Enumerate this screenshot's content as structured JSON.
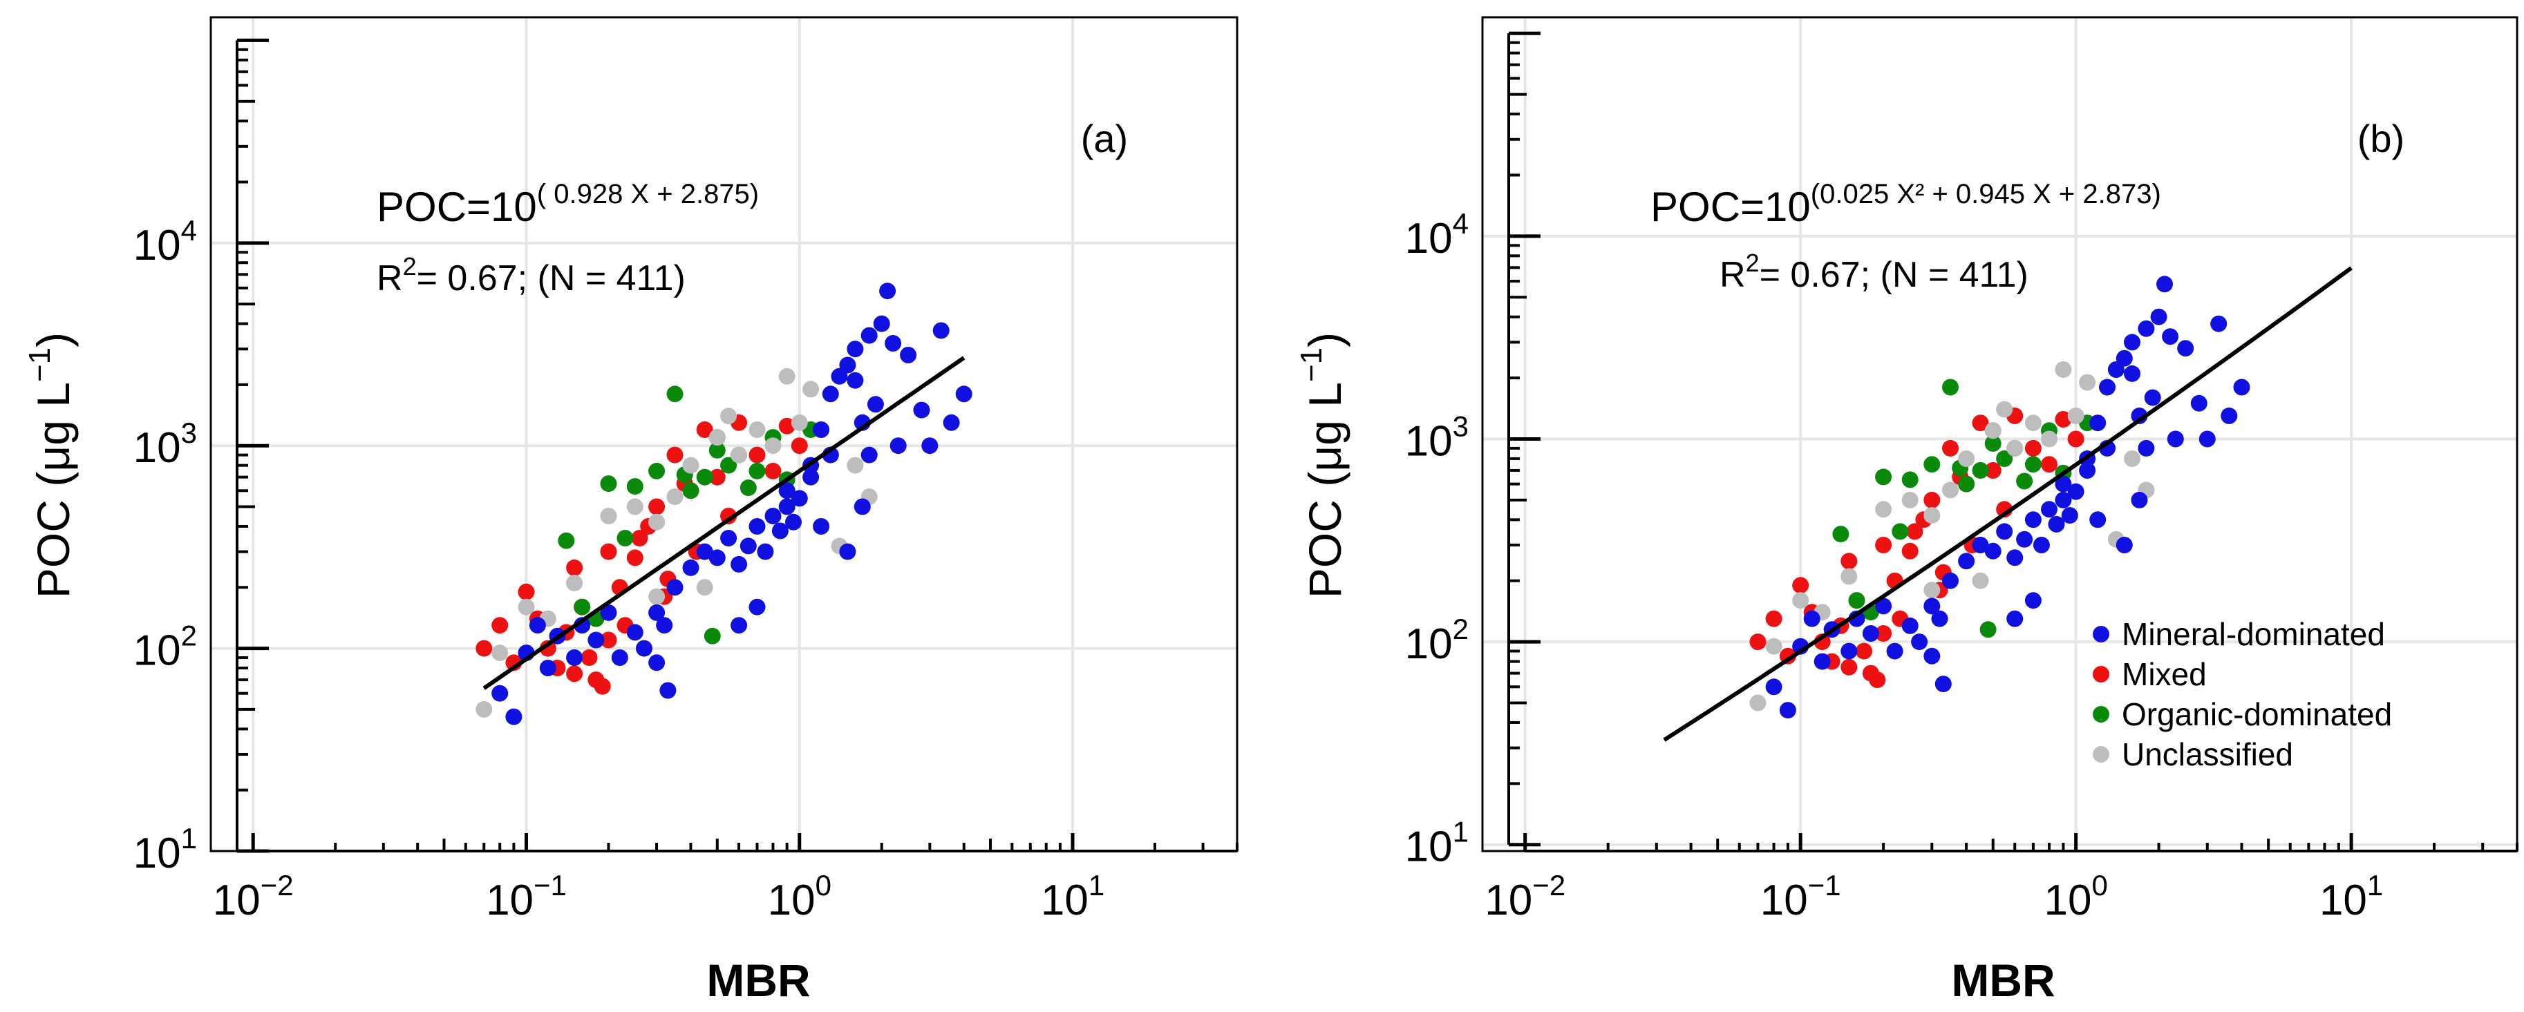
{
  "colors": {
    "mineral": "#1010e0",
    "mixed": "#ee1111",
    "organic": "#0a8a0a",
    "unclassified": "#bdbdbd",
    "fit": "#000000",
    "grid": "#e6e6e6",
    "axis": "#000000"
  },
  "legend": {
    "mineral": "Mineral-dominated",
    "mixed": "Mixed",
    "organic": "Organic-dominated",
    "unclassified": "Unclassified"
  },
  "chart_data": [
    {
      "type": "scatter",
      "panel_label": "(a)",
      "xlabel": "MBR",
      "ylabel_main": "POC (μg L",
      "ylabel_sup": "−1",
      "ylabel_close": ")",
      "xscale": "log",
      "yscale": "log",
      "xlim": [
        0.007,
        40
      ],
      "ylim": [
        10,
        130000
      ],
      "x_ticks": [
        {
          "value": 0.01,
          "base": "10",
          "exp": "−2"
        },
        {
          "value": 0.1,
          "base": "10",
          "exp": "−1"
        },
        {
          "value": 1,
          "base": "10",
          "exp": "0"
        },
        {
          "value": 10,
          "base": "10",
          "exp": "1"
        }
      ],
      "y_ticks": [
        {
          "value": 10,
          "base": "10",
          "exp": "1"
        },
        {
          "value": 100,
          "base": "10",
          "exp": "2"
        },
        {
          "value": 1000,
          "base": "10",
          "exp": "3"
        },
        {
          "value": 10000,
          "base": "10",
          "exp": "4"
        }
      ],
      "equation_main": "POC=10",
      "equation_sup": "( 0.928 X + 2.875)",
      "r2_prefix": "R",
      "r2_sup": "2",
      "r2_rest": "= 0.67; (N = 411)",
      "fit": {
        "form": "log10(POC) = 0.928 log10(MBR) + 2.875",
        "a": 0,
        "b": 0.928,
        "c": 2.875,
        "x_range": [
          0.07,
          4.0
        ]
      },
      "show_legend": false,
      "n_points": 411
    },
    {
      "type": "scatter",
      "panel_label": "(b)",
      "xlabel": "MBR",
      "ylabel_main": "POC (μg L",
      "ylabel_sup": "−1",
      "ylabel_close": ")",
      "xscale": "log",
      "yscale": "log",
      "xlim": [
        0.007,
        40
      ],
      "ylim": [
        9.3,
        120000
      ],
      "x_ticks": [
        {
          "value": 0.01,
          "base": "10",
          "exp": "−2"
        },
        {
          "value": 0.1,
          "base": "10",
          "exp": "−1"
        },
        {
          "value": 1,
          "base": "10",
          "exp": "0"
        },
        {
          "value": 10,
          "base": "10",
          "exp": "1"
        }
      ],
      "y_ticks": [
        {
          "value": 10,
          "base": "10",
          "exp": "1"
        },
        {
          "value": 100,
          "base": "10",
          "exp": "2"
        },
        {
          "value": 1000,
          "base": "10",
          "exp": "3"
        },
        {
          "value": 10000,
          "base": "10",
          "exp": "4"
        }
      ],
      "equation_main": "POC=10",
      "equation_sup": "(0.025 X² + 0.945 X + 2.873)",
      "r2_prefix": "R",
      "r2_sup": "2",
      "r2_rest": "= 0.67; (N = 411)",
      "fit": {
        "form": "log10(POC) = 0.025 X² + 0.945 X + 2.873, X = log10(MBR)",
        "a": 0.025,
        "b": 0.945,
        "c": 2.873,
        "x_range": [
          0.032,
          10
        ]
      },
      "show_legend": true,
      "n_points": 411
    }
  ],
  "scatter_points": {
    "mineral": [
      [
        0.08,
        60
      ],
      [
        0.09,
        46
      ],
      [
        0.1,
        95
      ],
      [
        0.11,
        130
      ],
      [
        0.12,
        80
      ],
      [
        0.13,
        115
      ],
      [
        0.15,
        90
      ],
      [
        0.16,
        130
      ],
      [
        0.18,
        110
      ],
      [
        0.2,
        150
      ],
      [
        0.22,
        90
      ],
      [
        0.25,
        120
      ],
      [
        0.27,
        100
      ],
      [
        0.3,
        150
      ],
      [
        0.3,
        85
      ],
      [
        0.32,
        130
      ],
      [
        0.33,
        62
      ],
      [
        0.35,
        200
      ],
      [
        0.4,
        250
      ],
      [
        0.45,
        300
      ],
      [
        0.5,
        280
      ],
      [
        0.55,
        350
      ],
      [
        0.6,
        260
      ],
      [
        0.65,
        320
      ],
      [
        0.7,
        400
      ],
      [
        0.75,
        300
      ],
      [
        0.8,
        450
      ],
      [
        0.85,
        380
      ],
      [
        0.9,
        500
      ],
      [
        0.95,
        420
      ],
      [
        1.0,
        550
      ],
      [
        1.1,
        800
      ],
      [
        1.2,
        1200
      ],
      [
        1.3,
        1800
      ],
      [
        1.4,
        2200
      ],
      [
        1.5,
        2500
      ],
      [
        1.6,
        3000
      ],
      [
        1.7,
        1300
      ],
      [
        1.8,
        900
      ],
      [
        1.9,
        1600
      ],
      [
        2.0,
        4000
      ],
      [
        2.1,
        5800
      ],
      [
        2.2,
        3200
      ],
      [
        2.5,
        2800
      ],
      [
        2.8,
        1500
      ],
      [
        3.0,
        1000
      ],
      [
        3.3,
        3700
      ],
      [
        3.6,
        1300
      ],
      [
        4.0,
        1800
      ],
      [
        0.7,
        160
      ],
      [
        1.2,
        400
      ],
      [
        1.5,
        300
      ],
      [
        0.6,
        130
      ],
      [
        0.9,
        600
      ],
      [
        1.1,
        700
      ],
      [
        1.7,
        500
      ],
      [
        2.3,
        1000
      ],
      [
        1.3,
        900
      ],
      [
        1.6,
        2100
      ],
      [
        1.8,
        3500
      ]
    ],
    "mixed": [
      [
        0.07,
        100
      ],
      [
        0.08,
        130
      ],
      [
        0.09,
        85
      ],
      [
        0.1,
        190
      ],
      [
        0.11,
        140
      ],
      [
        0.12,
        100
      ],
      [
        0.13,
        80
      ],
      [
        0.14,
        120
      ],
      [
        0.15,
        250
      ],
      [
        0.16,
        160
      ],
      [
        0.17,
        90
      ],
      [
        0.18,
        70
      ],
      [
        0.19,
        65
      ],
      [
        0.2,
        300
      ],
      [
        0.22,
        200
      ],
      [
        0.25,
        280
      ],
      [
        0.28,
        400
      ],
      [
        0.3,
        500
      ],
      [
        0.32,
        180
      ],
      [
        0.35,
        900
      ],
      [
        0.38,
        650
      ],
      [
        0.4,
        600
      ],
      [
        0.45,
        1200
      ],
      [
        0.5,
        1100
      ],
      [
        0.55,
        450
      ],
      [
        0.6,
        1300
      ],
      [
        0.7,
        900
      ],
      [
        0.8,
        750
      ],
      [
        0.9,
        1250
      ],
      [
        1.0,
        1000
      ],
      [
        0.26,
        350
      ],
      [
        0.33,
        220
      ],
      [
        0.42,
        300
      ],
      [
        0.5,
        700
      ],
      [
        0.23,
        130
      ],
      [
        0.2,
        110
      ],
      [
        0.15,
        75
      ]
    ],
    "organic": [
      [
        0.14,
        340
      ],
      [
        0.16,
        160
      ],
      [
        0.18,
        140
      ],
      [
        0.2,
        650
      ],
      [
        0.23,
        350
      ],
      [
        0.25,
        630
      ],
      [
        0.3,
        750
      ],
      [
        0.35,
        1800
      ],
      [
        0.4,
        600
      ],
      [
        0.45,
        700
      ],
      [
        0.48,
        115
      ],
      [
        0.5,
        950
      ],
      [
        0.55,
        800
      ],
      [
        0.6,
        900
      ],
      [
        0.7,
        750
      ],
      [
        0.8,
        1100
      ],
      [
        0.9,
        680
      ],
      [
        1.1,
        1200
      ],
      [
        0.38,
        720
      ],
      [
        0.65,
        620
      ]
    ],
    "unclassified": [
      [
        0.07,
        50
      ],
      [
        0.08,
        95
      ],
      [
        0.1,
        160
      ],
      [
        0.12,
        140
      ],
      [
        0.15,
        210
      ],
      [
        0.2,
        450
      ],
      [
        0.25,
        500
      ],
      [
        0.3,
        420
      ],
      [
        0.35,
        560
      ],
      [
        0.4,
        800
      ],
      [
        0.5,
        1100
      ],
      [
        0.55,
        1400
      ],
      [
        0.6,
        900
      ],
      [
        0.7,
        1200
      ],
      [
        0.8,
        1000
      ],
      [
        0.9,
        2200
      ],
      [
        1.0,
        1300
      ],
      [
        1.1,
        1900
      ],
      [
        1.3,
        900
      ],
      [
        1.6,
        800
      ],
      [
        1.8,
        560
      ],
      [
        1.4,
        320
      ],
      [
        0.45,
        200
      ],
      [
        0.3,
        180
      ]
    ]
  }
}
